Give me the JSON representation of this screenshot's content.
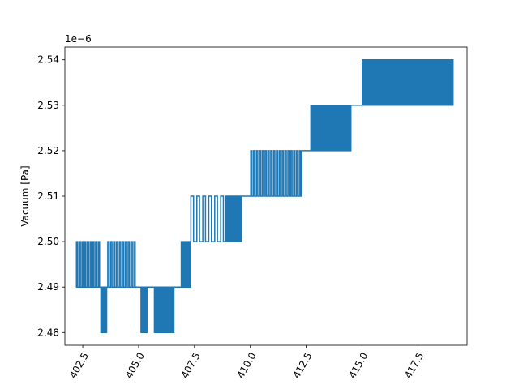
{
  "chart_data": {
    "type": "line",
    "title": "",
    "xlabel": "",
    "ylabel": "Vacuum [Pa]",
    "y_offset_text": "1e−6",
    "xlim": [
      401.7,
      419.7
    ],
    "ylim": [
      2.4772,
      2.5428
    ],
    "xticks": [
      402.5,
      405.0,
      407.5,
      410.0,
      412.5,
      415.0,
      417.5
    ],
    "xtick_labels": [
      "402.5",
      "405.0",
      "407.5",
      "410.0",
      "412.5",
      "415.0",
      "417.5"
    ],
    "xtick_rotation": 60,
    "yticks": [
      2.48,
      2.49,
      2.5,
      2.51,
      2.52,
      2.53,
      2.54
    ],
    "ytick_labels": [
      "2.48",
      "2.49",
      "2.50",
      "2.51",
      "2.52",
      "2.53",
      "2.54"
    ],
    "grid": false,
    "legend": "none",
    "series": [
      {
        "color": "#1f77b4",
        "segments": [
          {
            "x_start": 402.2,
            "x_end": 403.3,
            "base": 2.49,
            "flicker": 2.5,
            "density": 9
          },
          {
            "x_start": 403.3,
            "x_end": 403.6,
            "base": 2.49,
            "flicker": 2.48,
            "density": 4
          },
          {
            "x_start": 403.6,
            "x_end": 404.9,
            "base": 2.49,
            "flicker": 2.5,
            "density": 10
          },
          {
            "x_start": 405.1,
            "x_end": 405.4,
            "base": 2.49,
            "flicker": 2.48,
            "density": 6
          },
          {
            "x_start": 405.4,
            "x_end": 405.7,
            "base": 2.49,
            "flicker": 2.49,
            "density": 0
          },
          {
            "x_start": 405.7,
            "x_end": 406.6,
            "base": 2.49,
            "flicker": 2.48,
            "density": 18
          },
          {
            "x_start": 406.6,
            "x_end": 406.9,
            "base": 2.49,
            "flicker": 2.49,
            "density": 0
          },
          {
            "x_start": 406.9,
            "x_end": 407.3,
            "base": 2.49,
            "flicker": 2.5,
            "density": 6
          },
          {
            "x_start": 407.3,
            "x_end": 408.9,
            "base": 2.5,
            "flicker": 2.51,
            "density": 6
          },
          {
            "x_start": 408.9,
            "x_end": 409.6,
            "base": 2.5,
            "flicker": 2.51,
            "density": 16
          },
          {
            "x_start": 409.6,
            "x_end": 410.0,
            "base": 2.51,
            "flicker": 2.51,
            "density": 0
          },
          {
            "x_start": 410.0,
            "x_end": 412.3,
            "base": 2.51,
            "flicker": 2.52,
            "density": 18
          },
          {
            "x_start": 412.3,
            "x_end": 412.7,
            "base": 2.52,
            "flicker": 2.52,
            "density": 0
          },
          {
            "x_start": 412.7,
            "x_end": 414.5,
            "base": 2.52,
            "flicker": 2.53,
            "density": 30
          },
          {
            "x_start": 414.5,
            "x_end": 415.0,
            "base": 2.53,
            "flicker": 2.53,
            "density": 0
          },
          {
            "x_start": 415.0,
            "x_end": 419.1,
            "base": 2.53,
            "flicker": 2.54,
            "density": 60
          }
        ]
      }
    ]
  }
}
